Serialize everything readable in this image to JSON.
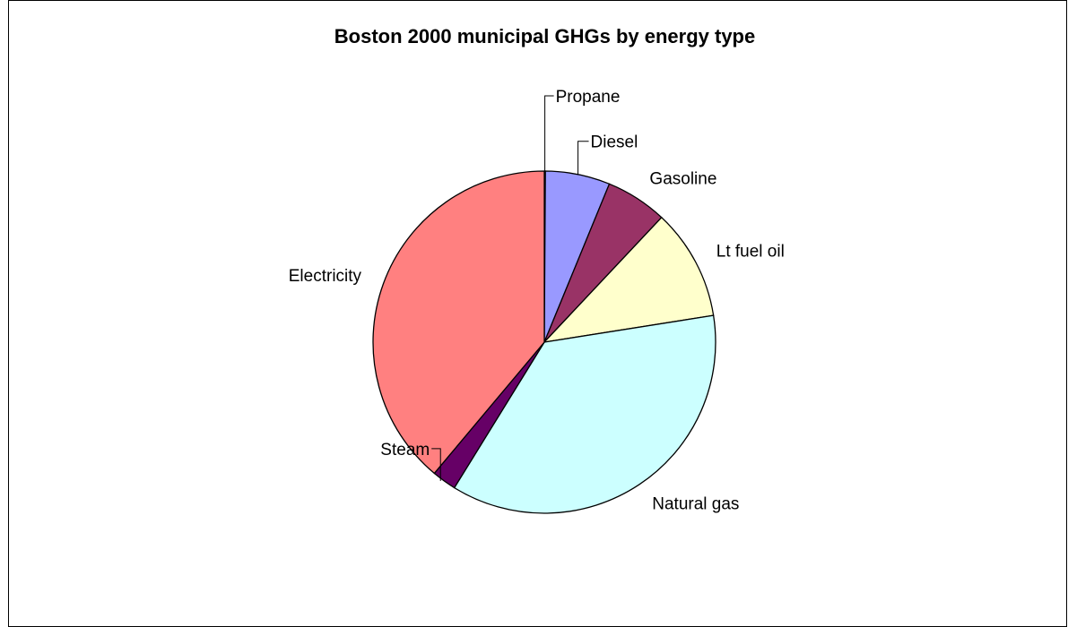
{
  "chart_data": {
    "type": "pie",
    "title": "Boston 2000 municipal GHGs by energy type",
    "start_angle_deg": 0,
    "direction": "clockwise",
    "slices": [
      {
        "label": "Propane",
        "value": 0.1,
        "color": "#C0C0C0"
      },
      {
        "label": "Diesel",
        "value": 6.1,
        "color": "#9999FF"
      },
      {
        "label": "Gasoline",
        "value": 5.8,
        "color": "#993366"
      },
      {
        "label": "Lt fuel oil",
        "value": 10.5,
        "color": "#FFFFCC"
      },
      {
        "label": "Natural gas",
        "value": 36.3,
        "color": "#CCFFFF"
      },
      {
        "label": "Steam",
        "value": 2.3,
        "color": "#660066"
      },
      {
        "label": "Electricity",
        "value": 38.9,
        "color": "#FF8080"
      }
    ],
    "legend": "none"
  }
}
